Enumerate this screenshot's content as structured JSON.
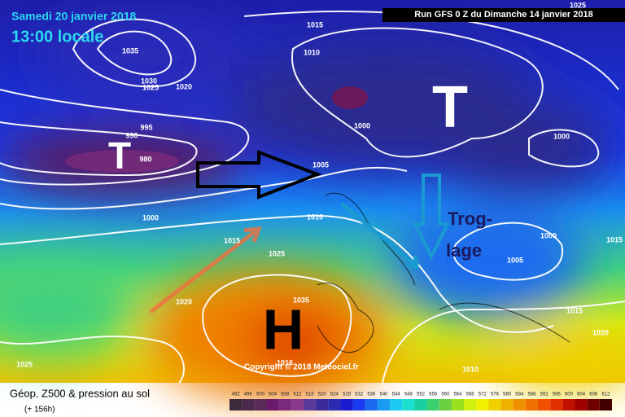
{
  "header": {
    "date": "Samedi 20 janvier 2018",
    "time": "13:00 locale",
    "run": "Run GFS 0 Z du Dimanche 14 janvier 2018"
  },
  "footer": {
    "title": "Géop. Z500 & pression au sol",
    "subtitle": "(+ 156h)"
  },
  "copyright": "Copyright © 2018 Meteociel.fr",
  "annotations": [
    {
      "label": "T"
    },
    {
      "label": "T"
    },
    {
      "label": "H"
    },
    {
      "label": "Trog-"
    },
    {
      "label": "lage"
    }
  ],
  "isobar_labels": [
    "1035",
    "1030",
    "1025",
    "1020",
    "995",
    "990",
    "980",
    "1015",
    "1010",
    "1000",
    "1005",
    "1010",
    "1000",
    "1015",
    "1025",
    "1020",
    "1035",
    "1016",
    "1010",
    "1000",
    "1000",
    "1005",
    "1015",
    "1020",
    "1025",
    "1015",
    "1025"
  ],
  "legend": {
    "labels": [
      492,
      496,
      500,
      504,
      508,
      512,
      516,
      520,
      524,
      528,
      532,
      536,
      540,
      544,
      548,
      552,
      556,
      560,
      564,
      568,
      572,
      576,
      580,
      584,
      588,
      592,
      596,
      600,
      604,
      608,
      612
    ],
    "colors": [
      "#3c2a3c",
      "#4a2a4a",
      "#5a2a5a",
      "#6a1a6a",
      "#7a2a7a",
      "#8a3a8a",
      "#5a3a9a",
      "#3a2a9a",
      "#2a2ab0",
      "#1a1ad0",
      "#1a3af0",
      "#1a6af0",
      "#1a9af0",
      "#1acaf0",
      "#1ae0d0",
      "#1ad0a0",
      "#3ad070",
      "#6ad040",
      "#9ae020",
      "#d0f010",
      "#f0f000",
      "#f0d000",
      "#f0b000",
      "#f09000",
      "#f07000",
      "#f05000",
      "#e03000",
      "#c01000",
      "#a00000",
      "#700000",
      "#400000"
    ]
  }
}
